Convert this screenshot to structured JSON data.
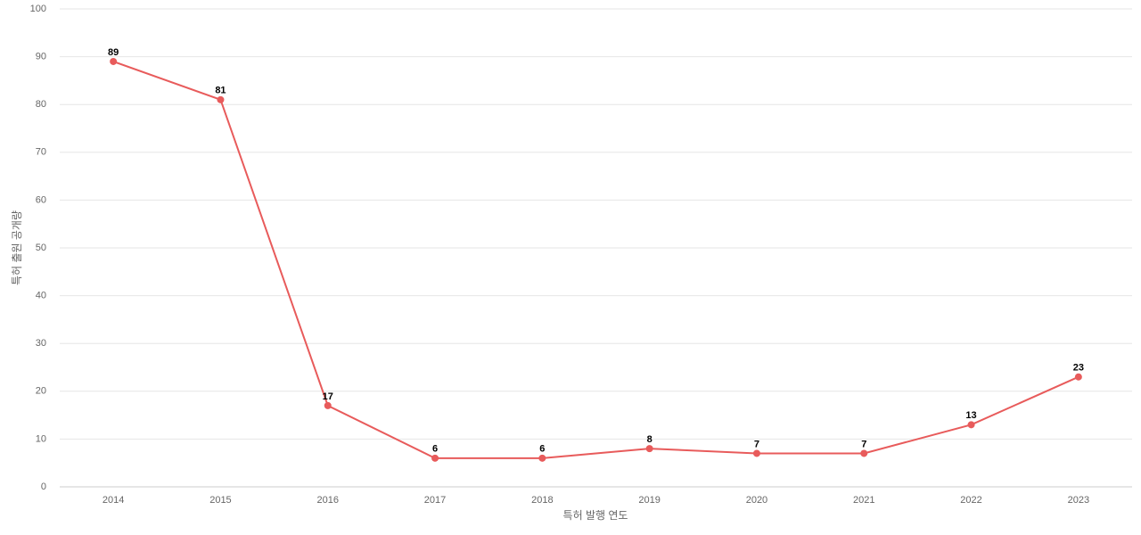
{
  "chart_data": {
    "type": "line",
    "x_label": "특허 발행 연도",
    "y_label": "특허 출원 공개량",
    "categories": [
      "2014",
      "2015",
      "2016",
      "2017",
      "2018",
      "2019",
      "2020",
      "2021",
      "2022",
      "2023"
    ],
    "series": [
      {
        "color": "#e85b5b",
        "values": [
          89,
          81,
          17,
          6,
          6,
          8,
          7,
          7,
          13,
          23
        ]
      }
    ],
    "ylim": [
      0,
      100
    ],
    "yticks": [
      0,
      10,
      20,
      30,
      40,
      50,
      60,
      70,
      80,
      90,
      100
    ],
    "grid": true
  }
}
